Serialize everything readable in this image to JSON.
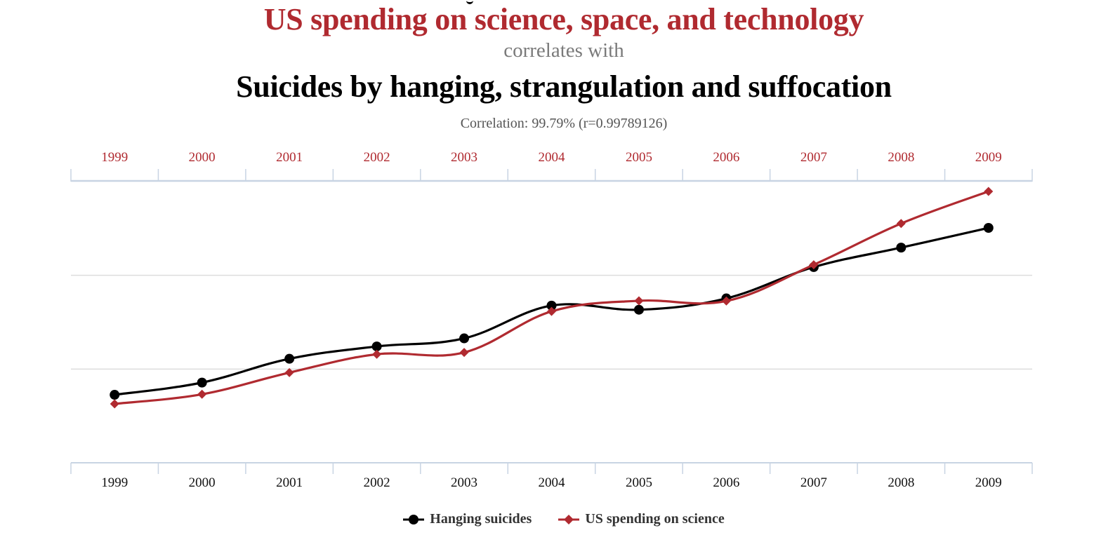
{
  "header": {
    "title_primary": "US spending on science, space, and technology",
    "connector": "correlates with",
    "title_secondary": "Suicides by hanging, strangulation and suffocation",
    "correlation": "Correlation: 99.79% (r=0.99789126)"
  },
  "colors": {
    "primary_red": "#b02a30",
    "secondary_black": "#000000",
    "axis_line": "#c8d4e3",
    "grid_line": "#dddddd",
    "connector_grey": "#7a7a7a"
  },
  "chart_data": {
    "type": "line",
    "title": "US spending on science, space, and technology correlates with Suicides by hanging, strangulation and suffocation",
    "subtitle": "Correlation: 99.79% (r=0.99789126)",
    "x": [
      "1999",
      "2000",
      "2001",
      "2002",
      "2003",
      "2004",
      "2005",
      "2006",
      "2007",
      "2008",
      "2009"
    ],
    "top_axis_labels": [
      "1999",
      "2000",
      "2001",
      "2002",
      "2003",
      "2004",
      "2005",
      "2006",
      "2007",
      "2008",
      "2009"
    ],
    "bottom_axis_labels": [
      "1999",
      "2000",
      "2001",
      "2002",
      "2003",
      "2004",
      "2005",
      "2006",
      "2007",
      "2008",
      "2009"
    ],
    "xlabel": "",
    "ylabel": "",
    "grid": true,
    "legend_position": "bottom-center",
    "series": [
      {
        "name": "Hanging suicides",
        "color": "#000000",
        "marker": "circle",
        "values": [
          5427,
          5688,
          6198,
          6462,
          6635,
          7336,
          7248,
          7491,
          8161,
          8578,
          9000
        ],
        "ylim": [
          3971,
          9991
        ]
      },
      {
        "name": "US spending on science",
        "color": "#b02a30",
        "marker": "diamond",
        "values": [
          18079,
          18594,
          19753,
          20734,
          20831,
          23029,
          23597,
          23584,
          25525,
          27731,
          29449
        ],
        "ylim": [
          14927,
          29974
        ]
      }
    ]
  },
  "legend": {
    "items": [
      {
        "label": "Hanging suicides",
        "icon": "circle-marker-icon"
      },
      {
        "label": "US spending on science",
        "icon": "diamond-marker-icon"
      }
    ]
  }
}
